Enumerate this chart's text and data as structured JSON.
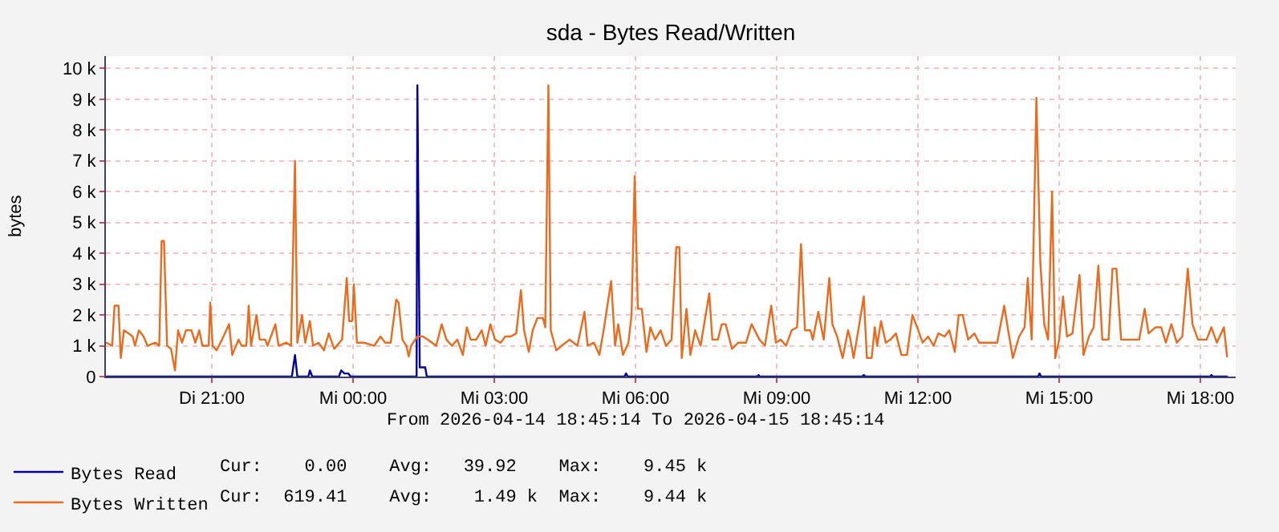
{
  "chart_data": {
    "type": "line",
    "title": "sda - Bytes Read/Written",
    "ylabel": "bytes",
    "xlim": [
      "2026-04-14T18:45",
      "2026-04-15T18:45"
    ],
    "xticks": [
      {
        "value": "2026-04-14T21:00",
        "label": "Di 21:00"
      },
      {
        "value": "2026-04-15T00:00",
        "label": "Mi 00:00"
      },
      {
        "value": "2026-04-15T03:00",
        "label": "Mi 03:00"
      },
      {
        "value": "2026-04-15T06:00",
        "label": "Mi 06:00"
      },
      {
        "value": "2026-04-15T09:00",
        "label": "Mi 09:00"
      },
      {
        "value": "2026-04-15T12:00",
        "label": "Mi 12:00"
      },
      {
        "value": "2026-04-15T15:00",
        "label": "Mi 15:00"
      },
      {
        "value": "2026-04-15T18:00",
        "label": "Mi 18:00"
      }
    ],
    "ylim": [
      0,
      10400
    ],
    "yticks": [
      0,
      {
        "value": 1000,
        "label": "1 k"
      },
      {
        "value": 2000,
        "label": "2 k"
      },
      {
        "value": 3000,
        "label": "3 k"
      },
      {
        "value": 4000,
        "label": "4 k"
      },
      {
        "value": 5000,
        "label": "5 k"
      },
      {
        "value": 6000,
        "label": "6 k"
      },
      {
        "value": 7000,
        "label": "7 k"
      },
      {
        "value": 8000,
        "label": "8 k"
      },
      {
        "value": 9000,
        "label": "9 k"
      },
      {
        "value": 10000,
        "label": "10 k"
      }
    ],
    "grid": true,
    "legend": "bottom left",
    "marker": "none",
    "line_style": "solid",
    "series": [
      {
        "name": "Bytes Read",
        "color": "#0000a0",
        "x": [
          "2026-04-14T18:46",
          "2026-04-14T22:42",
          "2026-04-14T22:46",
          "2026-04-14T22:49",
          "2026-04-14T23:03",
          "2026-04-14T23:05",
          "2026-04-14T23:08",
          "2026-04-14T23:42",
          "2026-04-14T23:45",
          "2026-04-14T23:49",
          "2026-04-14T23:54",
          "2026-04-14T23:57",
          "2026-04-15T01:21",
          "2026-04-15T01:22",
          "2026-04-15T01:25",
          "2026-04-15T01:32",
          "2026-04-15T01:34",
          "2026-04-15T05:46",
          "2026-04-15T05:48",
          "2026-04-15T05:50",
          "2026-04-15T08:35",
          "2026-04-15T08:37",
          "2026-04-15T08:38",
          "2026-04-15T10:49",
          "2026-04-15T10:51",
          "2026-04-15T10:53",
          "2026-04-15T14:33",
          "2026-04-15T14:35",
          "2026-04-15T14:37",
          "2026-04-15T18:13",
          "2026-04-15T18:14",
          "2026-04-15T18:16",
          "2026-04-15T18:34"
        ],
        "values": [
          0,
          0,
          700,
          0,
          0,
          200,
          0,
          0,
          200,
          100,
          100,
          0,
          0,
          9450,
          300,
          300,
          0,
          0,
          100,
          0,
          0,
          50,
          0,
          0,
          50,
          0,
          0,
          100,
          0,
          0,
          50,
          0,
          0
        ]
      },
      {
        "name": "Bytes Written",
        "color": "#ea6a1e",
        "x": [
          "2026-04-14T18:46",
          "2026-04-14T18:53",
          "2026-04-14T18:56",
          "2026-04-14T19:01",
          "2026-04-14T19:04",
          "2026-04-14T19:08",
          "2026-04-14T19:14",
          "2026-04-14T19:19",
          "2026-04-14T19:22",
          "2026-04-14T19:27",
          "2026-04-14T19:33",
          "2026-04-14T19:38",
          "2026-04-14T19:48",
          "2026-04-14T19:53",
          "2026-04-14T19:56",
          "2026-04-14T19:59",
          "2026-04-14T20:03",
          "2026-04-14T20:08",
          "2026-04-14T20:13",
          "2026-04-14T20:17",
          "2026-04-14T20:22",
          "2026-04-14T20:27",
          "2026-04-14T20:34",
          "2026-04-14T20:39",
          "2026-04-14T20:44",
          "2026-04-14T20:48",
          "2026-04-14T20:56",
          "2026-04-14T20:58",
          "2026-04-14T21:01",
          "2026-04-14T21:06",
          "2026-04-14T21:13",
          "2026-04-14T21:22",
          "2026-04-14T21:26",
          "2026-04-14T21:34",
          "2026-04-14T21:38",
          "2026-04-14T21:44",
          "2026-04-14T21:47",
          "2026-04-14T21:50",
          "2026-04-14T21:57",
          "2026-04-14T22:01",
          "2026-04-14T22:08",
          "2026-04-14T22:11",
          "2026-04-14T22:21",
          "2026-04-14T22:25",
          "2026-04-14T22:35",
          "2026-04-14T22:41",
          "2026-04-14T22:46",
          "2026-04-14T22:49",
          "2026-04-14T22:55",
          "2026-04-14T22:59",
          "2026-04-14T23:05",
          "2026-04-14T23:09",
          "2026-04-14T23:16",
          "2026-04-14T23:23",
          "2026-04-14T23:29",
          "2026-04-14T23:36",
          "2026-04-14T23:46",
          "2026-04-14T23:52",
          "2026-04-14T23:55",
          "2026-04-14T23:59",
          "2026-04-15T00:01",
          "2026-04-15T00:05",
          "2026-04-15T00:14",
          "2026-04-15T00:27",
          "2026-04-15T00:35",
          "2026-04-15T00:41",
          "2026-04-15T00:48",
          "2026-04-15T00:55",
          "2026-04-15T00:58",
          "2026-04-15T01:03",
          "2026-04-15T01:08",
          "2026-04-15T01:11",
          "2026-04-15T01:14",
          "2026-04-15T01:22",
          "2026-04-15T01:29",
          "2026-04-15T01:35",
          "2026-04-15T01:46",
          "2026-04-15T01:53",
          "2026-04-15T01:59",
          "2026-04-15T02:06",
          "2026-04-15T02:13",
          "2026-04-15T02:20",
          "2026-04-15T02:25",
          "2026-04-15T02:30",
          "2026-04-15T02:37",
          "2026-04-15T02:44",
          "2026-04-15T02:49",
          "2026-04-15T02:55",
          "2026-04-15T03:01",
          "2026-04-15T03:08",
          "2026-04-15T03:14",
          "2026-04-15T03:21",
          "2026-04-15T03:28",
          "2026-04-15T03:34",
          "2026-04-15T03:38",
          "2026-04-15T03:44",
          "2026-04-15T03:49",
          "2026-04-15T03:55",
          "2026-04-15T04:02",
          "2026-04-15T04:05",
          "2026-04-15T04:09",
          "2026-04-15T04:12",
          "2026-04-15T04:19",
          "2026-04-15T04:26",
          "2026-04-15T04:36",
          "2026-04-15T04:46",
          "2026-04-15T04:55",
          "2026-04-15T04:59",
          "2026-04-15T05:07",
          "2026-04-15T05:14",
          "2026-04-15T05:20",
          "2026-04-15T05:29",
          "2026-04-15T05:34",
          "2026-04-15T05:38",
          "2026-04-15T05:44",
          "2026-04-15T05:51",
          "2026-04-15T05:55",
          "2026-04-15T05:59",
          "2026-04-15T06:03",
          "2026-04-15T06:08",
          "2026-04-15T06:14",
          "2026-04-15T06:19",
          "2026-04-15T06:25",
          "2026-04-15T06:32",
          "2026-04-15T06:39",
          "2026-04-15T06:46",
          "2026-04-15T06:52",
          "2026-04-15T06:56",
          "2026-04-15T06:59",
          "2026-04-15T07:05",
          "2026-04-15T07:10",
          "2026-04-15T07:16",
          "2026-04-15T07:23",
          "2026-04-15T07:34",
          "2026-04-15T07:38",
          "2026-04-15T07:45",
          "2026-04-15T07:50",
          "2026-04-15T07:55",
          "2026-04-15T08:03",
          "2026-04-15T08:11",
          "2026-04-15T08:21",
          "2026-04-15T08:28",
          "2026-04-15T08:38",
          "2026-04-15T08:45",
          "2026-04-15T08:53",
          "2026-04-15T08:59",
          "2026-04-15T09:05",
          "2026-04-15T09:12",
          "2026-04-15T09:19",
          "2026-04-15T09:26",
          "2026-04-15T09:31",
          "2026-04-15T09:36",
          "2026-04-15T09:43",
          "2026-04-15T09:46",
          "2026-04-15T09:53",
          "2026-04-15T10:00",
          "2026-04-15T10:07",
          "2026-04-15T10:11",
          "2026-04-15T10:17",
          "2026-04-15T10:24",
          "2026-04-15T10:31",
          "2026-04-15T10:34",
          "2026-04-15T10:38",
          "2026-04-15T10:44",
          "2026-04-15T10:51",
          "2026-04-15T10:55",
          "2026-04-15T11:01",
          "2026-04-15T11:05",
          "2026-04-15T11:08",
          "2026-04-15T11:13",
          "2026-04-15T11:19",
          "2026-04-15T11:25",
          "2026-04-15T11:32",
          "2026-04-15T11:39",
          "2026-04-15T11:46",
          "2026-04-15T11:53",
          "2026-04-15T11:59",
          "2026-04-15T12:06",
          "2026-04-15T12:13",
          "2026-04-15T12:20",
          "2026-04-15T12:26",
          "2026-04-15T12:34",
          "2026-04-15T12:40",
          "2026-04-15T12:47",
          "2026-04-15T12:52",
          "2026-04-15T12:57",
          "2026-04-15T13:04",
          "2026-04-15T13:12",
          "2026-04-15T13:18",
          "2026-04-15T13:25",
          "2026-04-15T13:31",
          "2026-04-15T13:41",
          "2026-04-15T13:50",
          "2026-04-15T13:55",
          "2026-04-15T14:01",
          "2026-04-15T14:09",
          "2026-04-15T14:16",
          "2026-04-15T14:20",
          "2026-04-15T14:25",
          "2026-04-15T14:31",
          "2026-04-15T14:36",
          "2026-04-15T14:41",
          "2026-04-15T14:46",
          "2026-04-15T14:51",
          "2026-04-15T14:55",
          "2026-04-15T15:00",
          "2026-04-15T15:05",
          "2026-04-15T15:10",
          "2026-04-15T15:17",
          "2026-04-15T15:26",
          "2026-04-15T15:31",
          "2026-04-15T15:38",
          "2026-04-15T15:44",
          "2026-04-15T15:50",
          "2026-04-15T15:55",
          "2026-04-15T16:03",
          "2026-04-15T16:08",
          "2026-04-15T16:13",
          "2026-04-15T16:19",
          "2026-04-15T16:29",
          "2026-04-15T16:42",
          "2026-04-15T16:49",
          "2026-04-15T16:54",
          "2026-04-15T17:03",
          "2026-04-15T17:10",
          "2026-04-15T17:16",
          "2026-04-15T17:23",
          "2026-04-15T17:30",
          "2026-04-15T17:37",
          "2026-04-15T17:44",
          "2026-04-15T17:50",
          "2026-04-15T17:57",
          "2026-04-15T18:08",
          "2026-04-15T18:14",
          "2026-04-15T18:21",
          "2026-04-15T18:30",
          "2026-04-15T18:34"
        ],
        "values": [
          1100,
          1000,
          2300,
          2300,
          600,
          1500,
          1400,
          1300,
          1000,
          1500,
          1300,
          1000,
          1100,
          1000,
          4400,
          4400,
          1000,
          900,
          200,
          1500,
          1100,
          1500,
          1500,
          1100,
          1500,
          1000,
          1000,
          2400,
          1000,
          850,
          1200,
          1700,
          700,
          1200,
          1000,
          1000,
          2300,
          1000,
          2000,
          1200,
          1200,
          1000,
          1700,
          1000,
          1100,
          1000,
          7000,
          1100,
          2000,
          1100,
          1800,
          1000,
          1100,
          850,
          1400,
          900,
          1200,
          3200,
          1800,
          1800,
          3000,
          1100,
          1100,
          1000,
          1300,
          1100,
          1100,
          2500,
          2400,
          1200,
          1000,
          650,
          1000,
          1300,
          1300,
          1200,
          1000,
          1700,
          1200,
          1000,
          1200,
          700,
          1600,
          1200,
          1200,
          1500,
          1000,
          1700,
          1200,
          1100,
          1300,
          1300,
          1400,
          2800,
          1500,
          800,
          1500,
          1900,
          1900,
          1600,
          9450,
          1500,
          850,
          1000,
          1200,
          1000,
          2100,
          1000,
          1100,
          700,
          1600,
          3100,
          1000,
          1700,
          700,
          1100,
          2000,
          6500,
          2200,
          2200,
          800,
          1600,
          1200,
          1500,
          1000,
          1200,
          4200,
          4200,
          600,
          2200,
          700,
          1500,
          1000,
          2700,
          1200,
          1200,
          1700,
          1700,
          900,
          1100,
          1100,
          1700,
          1200,
          1000,
          2300,
          1100,
          1200,
          1000,
          1500,
          1600,
          4300,
          1500,
          1500,
          1200,
          2100,
          1200,
          3200,
          1700,
          1300,
          600,
          1500,
          1200,
          600,
          1500,
          2600,
          600,
          600,
          1600,
          1000,
          1800,
          1100,
          1200,
          1400,
          700,
          700,
          2000,
          1600,
          1100,
          1300,
          1000,
          1400,
          1300,
          1500,
          800,
          2000,
          2000,
          1200,
          1400,
          1100,
          1100,
          1100,
          1100,
          2300,
          1500,
          600,
          1300,
          1600,
          3200,
          1200,
          9050,
          3700,
          1700,
          1200,
          6000,
          600,
          1200,
          2600,
          1300,
          1400,
          3300,
          700,
          1300,
          1600,
          3600,
          1200,
          1200,
          3500,
          3500,
          1200,
          1200,
          1200,
          2200,
          1400,
          1600,
          1600,
          1100,
          1700,
          1100,
          1300,
          3500,
          1700,
          1200,
          1200,
          1600,
          1100,
          1600,
          650
        ]
      }
    ],
    "annotations": [
      "From 2026-04-14 18:45:14 To 2026-04-15 18:45:14",
      "Cur:    0.00    Avg:   39.92    Max:    9.45 k",
      "Cur:  619.41    Avg:    1.49 k  Max:    9.44 k"
    ]
  }
}
